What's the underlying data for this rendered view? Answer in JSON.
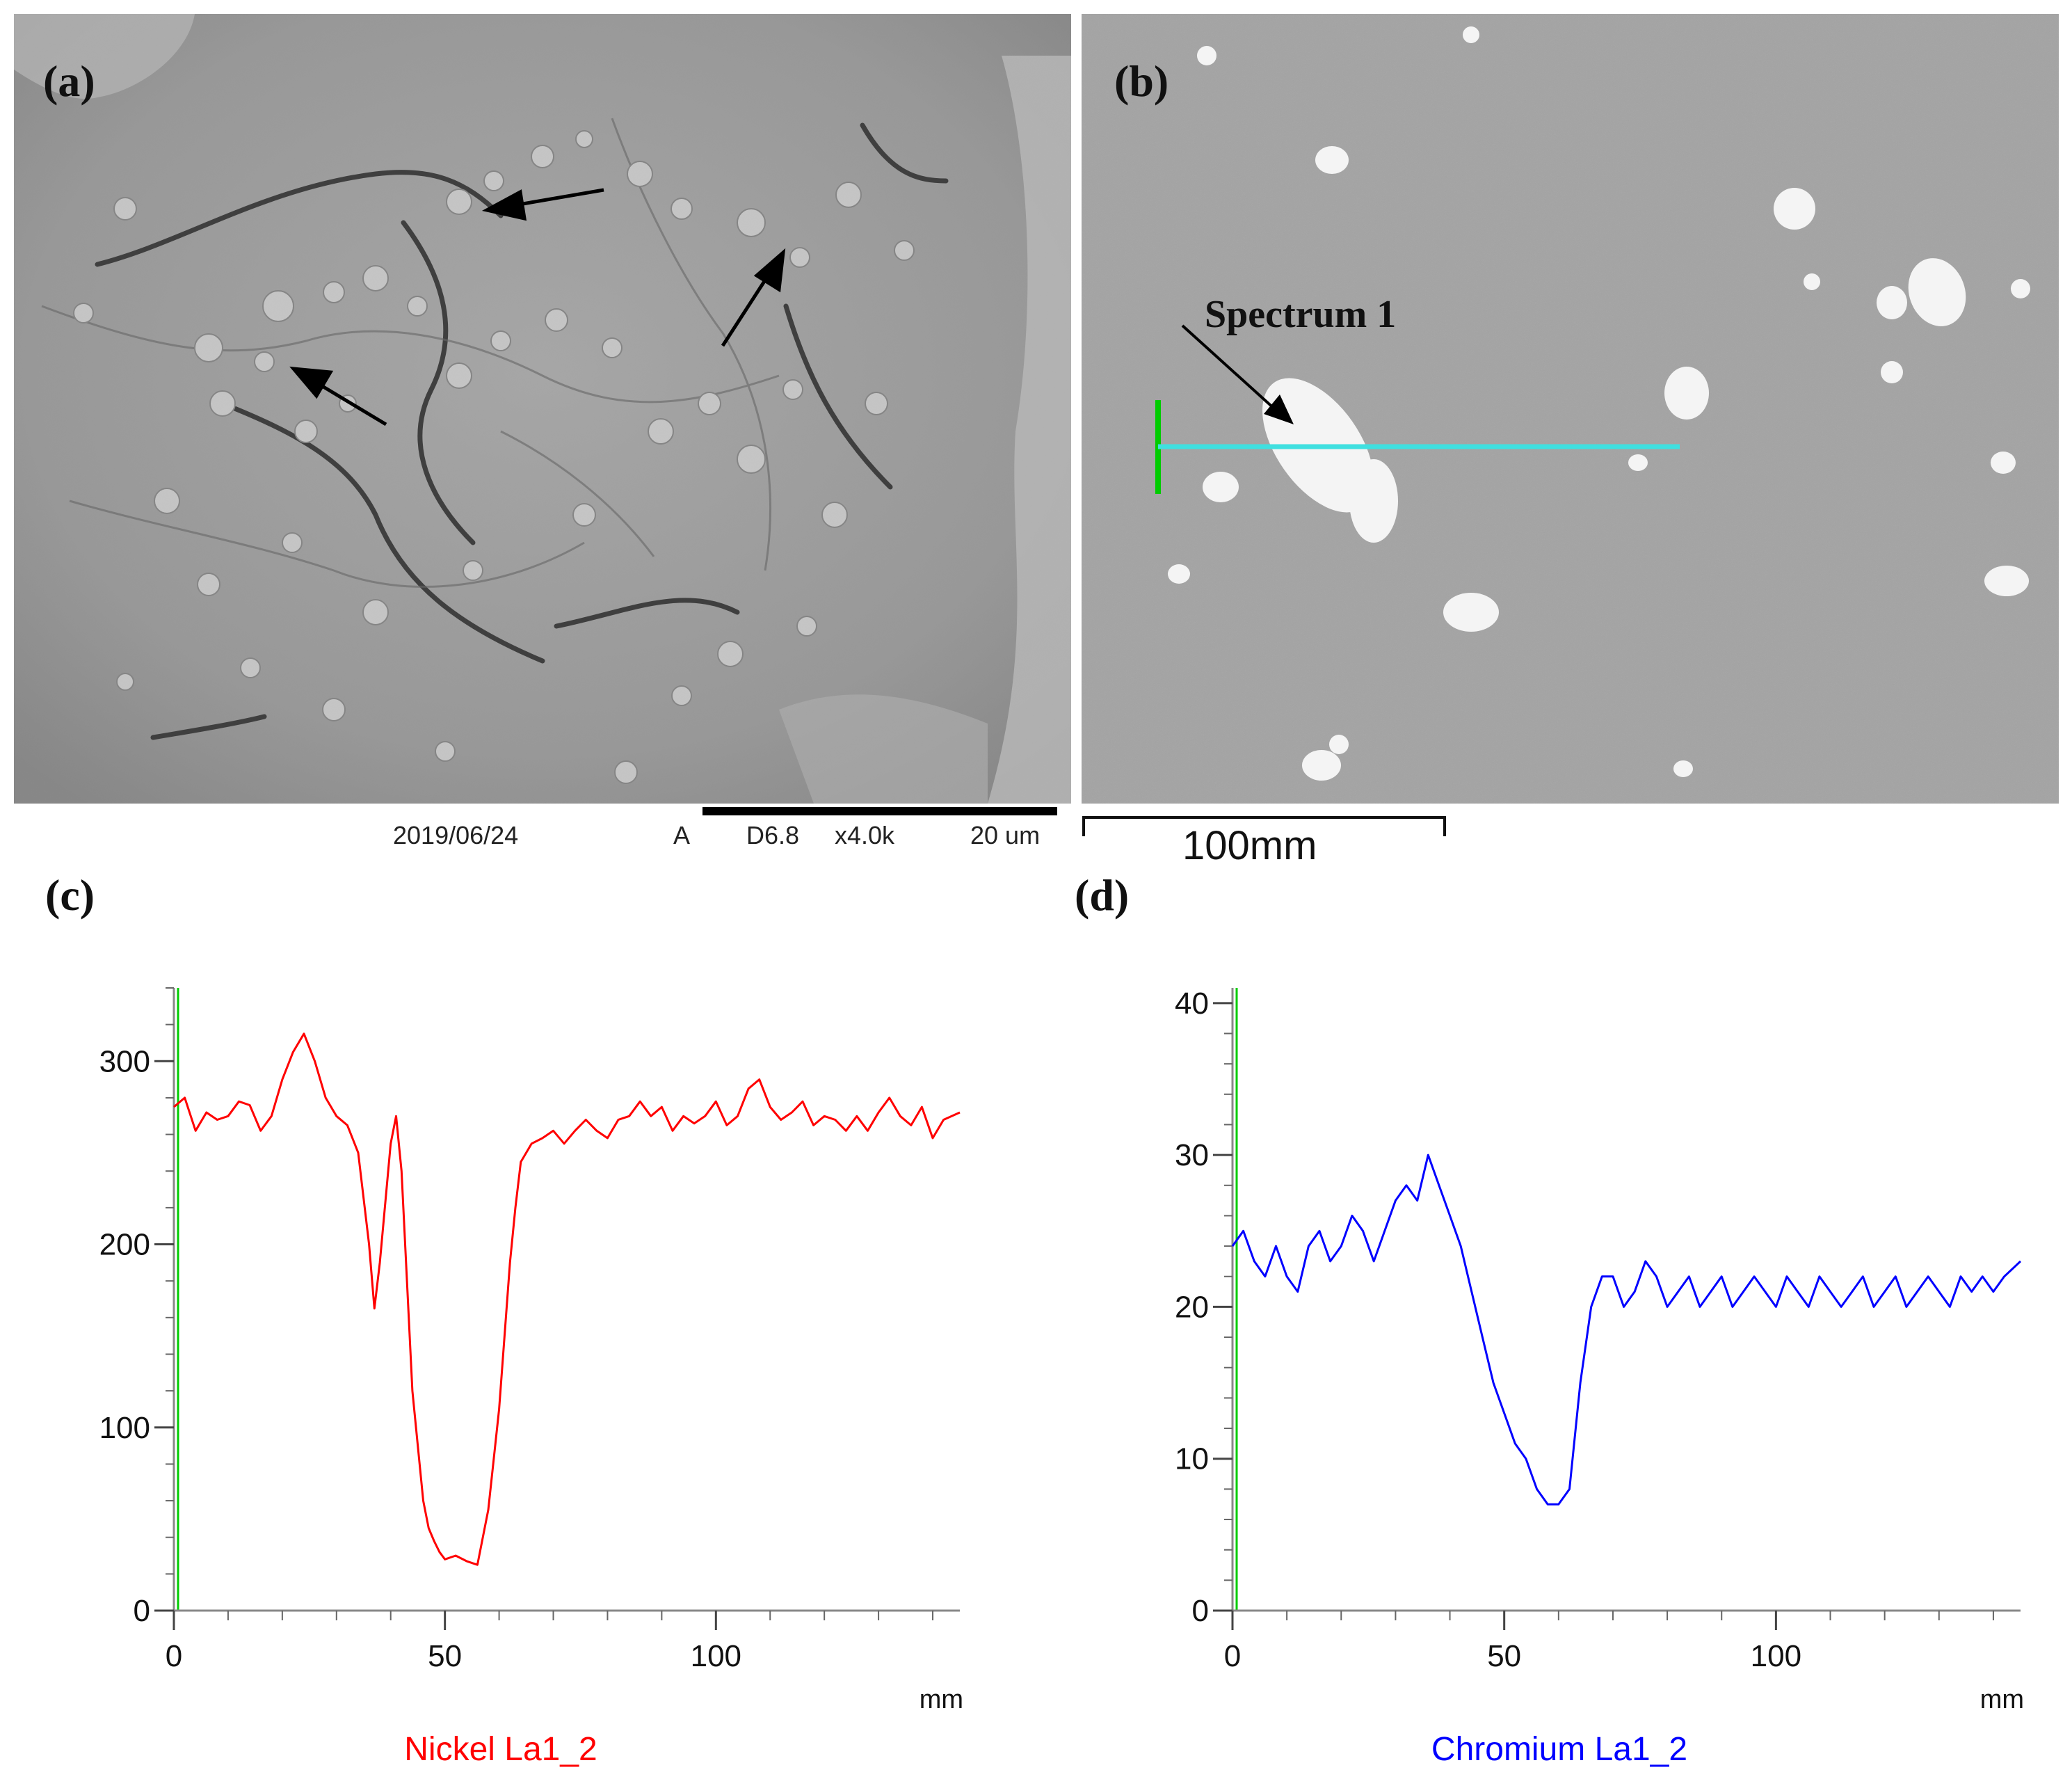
{
  "figure": {
    "panels": [
      {
        "id": "a",
        "label": "(a)"
      },
      {
        "id": "b",
        "label": "(b)"
      },
      {
        "id": "c",
        "label": "(c)"
      },
      {
        "id": "d",
        "label": "(d)"
      }
    ],
    "sem_a": {
      "date": "2019/06/24",
      "mode": "A",
      "working_distance": "D6.8",
      "magnification": "x4.0k",
      "scale_bar": "20 um"
    },
    "sem_b": {
      "annotation": "Spectrum 1",
      "scale_bar": "100mm"
    }
  },
  "colors": {
    "nickel": "#ff0000",
    "chromium": "#0000ff",
    "axis_green": "#00cc00",
    "linescan_cyan": "#3fe0e0"
  },
  "chart_data": [
    {
      "type": "line",
      "panel": "c",
      "xlabel": "mm",
      "ylabel": "",
      "xlim": [
        0,
        145
      ],
      "ylim": [
        0,
        340
      ],
      "xticks": [
        0,
        50,
        100
      ],
      "yticks": [
        0,
        100,
        200,
        300
      ],
      "series": [
        {
          "name": "Nickel La1_2",
          "color": "#ff0000",
          "x": [
            0,
            2,
            4,
            6,
            8,
            10,
            12,
            14,
            16,
            18,
            20,
            22,
            24,
            26,
            28,
            30,
            32,
            34,
            36,
            37,
            38,
            40,
            41,
            42,
            43,
            44,
            45,
            46,
            47,
            48,
            49,
            50,
            52,
            54,
            56,
            58,
            60,
            61,
            62,
            63,
            64,
            65,
            66,
            68,
            70,
            72,
            74,
            76,
            78,
            80,
            82,
            84,
            86,
            88,
            90,
            92,
            94,
            96,
            98,
            100,
            102,
            104,
            106,
            108,
            110,
            112,
            114,
            116,
            118,
            120,
            122,
            124,
            126,
            128,
            130,
            132,
            134,
            136,
            138,
            140,
            142,
            145
          ],
          "values": [
            275,
            280,
            262,
            272,
            268,
            270,
            278,
            276,
            262,
            270,
            290,
            305,
            315,
            300,
            280,
            270,
            265,
            250,
            200,
            165,
            190,
            255,
            270,
            240,
            180,
            120,
            90,
            60,
            45,
            38,
            32,
            28,
            30,
            27,
            25,
            55,
            110,
            150,
            190,
            220,
            245,
            250,
            255,
            258,
            262,
            255,
            262,
            268,
            262,
            258,
            268,
            270,
            278,
            270,
            275,
            262,
            270,
            266,
            270,
            278,
            265,
            270,
            285,
            290,
            275,
            268,
            272,
            278,
            265,
            270,
            268,
            262,
            270,
            262,
            272,
            280,
            270,
            265,
            275,
            258,
            268,
            272
          ]
        }
      ]
    },
    {
      "type": "line",
      "panel": "d",
      "xlabel": "mm",
      "ylabel": "",
      "xlim": [
        0,
        145
      ],
      "ylim": [
        0,
        41
      ],
      "xticks": [
        0,
        50,
        100
      ],
      "yticks": [
        0,
        10,
        20,
        30,
        40
      ],
      "series": [
        {
          "name": "Chromium La1_2",
          "color": "#0000ff",
          "x": [
            0,
            2,
            4,
            6,
            8,
            10,
            12,
            14,
            16,
            18,
            20,
            22,
            24,
            26,
            28,
            30,
            32,
            34,
            36,
            38,
            40,
            42,
            44,
            46,
            48,
            50,
            52,
            54,
            56,
            58,
            60,
            62,
            64,
            66,
            68,
            70,
            72,
            74,
            76,
            78,
            80,
            82,
            84,
            86,
            88,
            90,
            92,
            94,
            96,
            98,
            100,
            102,
            104,
            106,
            108,
            110,
            112,
            114,
            116,
            118,
            120,
            122,
            124,
            126,
            128,
            130,
            132,
            134,
            136,
            138,
            140,
            142,
            145
          ],
          "values": [
            24,
            25,
            23,
            22,
            24,
            22,
            21,
            24,
            25,
            23,
            24,
            26,
            25,
            23,
            25,
            27,
            28,
            27,
            30,
            28,
            26,
            24,
            21,
            18,
            15,
            13,
            11,
            10,
            8,
            7,
            7,
            8,
            15,
            20,
            22,
            22,
            20,
            21,
            23,
            22,
            20,
            21,
            22,
            20,
            21,
            22,
            20,
            21,
            22,
            21,
            20,
            22,
            21,
            20,
            22,
            21,
            20,
            21,
            22,
            20,
            21,
            22,
            20,
            21,
            22,
            21,
            20,
            22,
            21,
            22,
            21,
            22,
            23
          ]
        }
      ]
    }
  ]
}
